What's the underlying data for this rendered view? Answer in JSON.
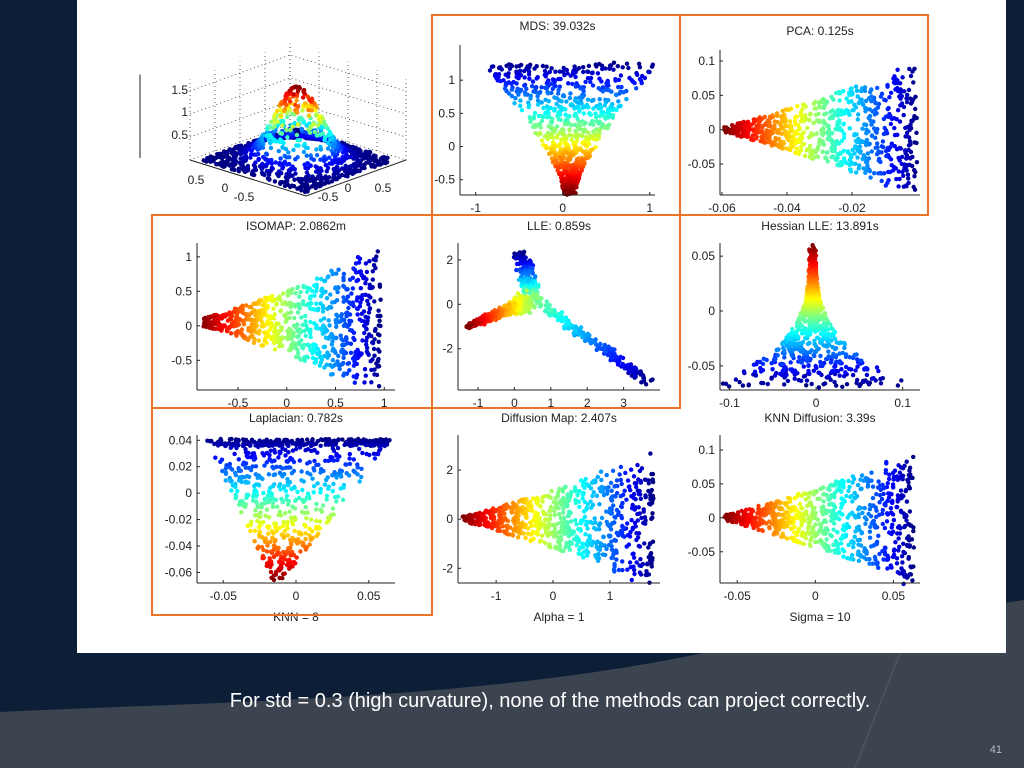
{
  "slide": {
    "caption": "For std = 0.3 (high curvature), none of the methods can project correctly.",
    "page_number": "41",
    "highlight_color": "#e8752a",
    "colormap": "jet"
  },
  "chart_data": [
    {
      "id": "input3d",
      "type": "scatter3d",
      "title": "",
      "description_colors": "jet by height",
      "zticks": [
        "0.5",
        "1",
        "1.5"
      ],
      "xticks": [
        "-0.5",
        "0",
        "0.5"
      ],
      "yticks": [
        "0.5",
        "0",
        "-0.5"
      ],
      "grid": true
    },
    {
      "id": "mds",
      "type": "scatter",
      "title": "MDS: 39.032s",
      "xlabel": "",
      "highlighted": true,
      "xlim": [
        -1.18,
        1.06
      ],
      "ylim": [
        -0.73,
        1.53
      ],
      "xticks": [
        -1,
        0,
        1
      ],
      "yticks": [
        -0.5,
        0,
        0.5,
        1
      ],
      "xtick_labels": [
        "-1",
        "0",
        "1"
      ],
      "ytick_labels": [
        "-0.5",
        "0",
        "0.5",
        "1"
      ]
    },
    {
      "id": "pca",
      "type": "scatter",
      "title": "PCA: 0.125s",
      "xlabel": "",
      "highlighted": true,
      "xlim": [
        -0.0606,
        0.0009
      ],
      "ylim": [
        -0.095,
        0.116
      ],
      "xticks": [
        -0.06,
        -0.04,
        -0.02
      ],
      "yticks": [
        -0.05,
        0,
        0.05,
        0.1
      ],
      "xtick_labels": [
        "-0.06",
        "-0.04",
        "-0.02"
      ],
      "ytick_labels": [
        "-0.05",
        "0",
        "0.05",
        "0.1"
      ]
    },
    {
      "id": "isomap",
      "type": "scatter",
      "title": "ISOMAP: 2.0862m",
      "xlabel": "",
      "highlighted": true,
      "xlim": [
        -0.92,
        1.11
      ],
      "ylim": [
        -0.93,
        1.2
      ],
      "xticks": [
        -0.5,
        0,
        0.5,
        1
      ],
      "yticks": [
        -0.5,
        0,
        0.5,
        1
      ],
      "xtick_labels": [
        "-0.5",
        "0",
        "0.5",
        "1"
      ],
      "ytick_labels": [
        "-0.5",
        "0",
        "0.5",
        "1"
      ]
    },
    {
      "id": "lle",
      "type": "scatter",
      "title": "LLE: 0.859s",
      "xlabel": "",
      "highlighted": true,
      "xlim": [
        -1.55,
        4.0
      ],
      "ylim": [
        -3.86,
        2.76
      ],
      "xticks": [
        -1,
        0,
        1,
        2,
        3
      ],
      "yticks": [
        -2,
        0,
        2
      ],
      "xtick_labels": [
        "-1",
        "0",
        "1",
        "2",
        "3"
      ],
      "ytick_labels": [
        "-2",
        "0",
        "2"
      ]
    },
    {
      "id": "hessian",
      "type": "scatter",
      "title": "Hessian LLE: 13.891s",
      "xlabel": "",
      "highlighted": false,
      "xlim": [
        -0.111,
        0.12
      ],
      "ylim": [
        -0.072,
        0.062
      ],
      "xticks": [
        -0.1,
        0,
        0.1
      ],
      "yticks": [
        -0.05,
        0,
        0.05
      ],
      "xtick_labels": [
        "-0.1",
        "0",
        "0.1"
      ],
      "ytick_labels": [
        "-0.05",
        "0",
        "0.05"
      ]
    },
    {
      "id": "laplacian",
      "type": "scatter",
      "title": "Laplacian: 0.782s",
      "xlabel": "KNN = 8",
      "highlighted": true,
      "xlim": [
        -0.068,
        0.068
      ],
      "ylim": [
        -0.068,
        0.044
      ],
      "xticks": [
        -0.05,
        0,
        0.05
      ],
      "yticks": [
        -0.06,
        -0.04,
        -0.02,
        0,
        0.02,
        0.04
      ],
      "xtick_labels": [
        "-0.05",
        "0",
        "0.05"
      ],
      "ytick_labels": [
        "-0.06",
        "-0.04",
        "-0.02",
        "0",
        "0.02",
        "0.04"
      ]
    },
    {
      "id": "diffusion",
      "type": "scatter",
      "title": "Diffusion Map: 2.407s",
      "xlabel": "Alpha = 1",
      "highlighted": false,
      "xlim": [
        -1.67,
        1.88
      ],
      "ylim": [
        -2.6,
        3.43
      ],
      "xticks": [
        -1,
        0,
        1
      ],
      "yticks": [
        -2,
        0,
        2
      ],
      "xtick_labels": [
        "-1",
        "0",
        "1"
      ],
      "ytick_labels": [
        "-2",
        "0",
        "2"
      ]
    },
    {
      "id": "knn_diffusion",
      "type": "scatter",
      "title": "KNN Diffusion: 3.39s",
      "xlabel": "Sigma = 10",
      "highlighted": false,
      "xlim": [
        -0.061,
        0.067
      ],
      "ylim": [
        -0.096,
        0.122
      ],
      "xticks": [
        -0.05,
        0,
        0.05
      ],
      "yticks": [
        -0.05,
        0,
        0.05,
        0.1
      ],
      "xtick_labels": [
        "-0.05",
        "0",
        "0.05"
      ],
      "ytick_labels": [
        "-0.05",
        "0",
        "0.05",
        "0.1"
      ]
    }
  ]
}
